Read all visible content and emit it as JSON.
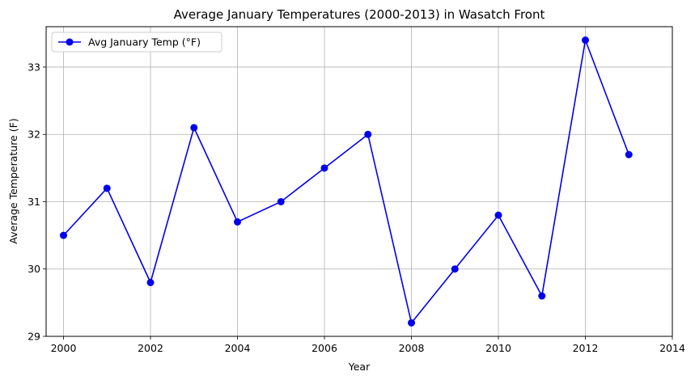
{
  "chart_data": {
    "type": "line",
    "title": "Average January Temperatures (2000-2013) in Wasatch Front",
    "xlabel": "Year",
    "ylabel": "Average Temperature (F)",
    "xlim": [
      1999.6,
      2014
    ],
    "ylim": [
      29,
      33.6
    ],
    "xticks": [
      2000,
      2002,
      2004,
      2006,
      2008,
      2010,
      2012,
      2014
    ],
    "yticks": [
      29,
      30,
      31,
      32,
      33
    ],
    "grid": true,
    "legend": "top-left",
    "series": [
      {
        "name": "Avg January Temp (°F)",
        "color": "#0000ee",
        "marker": "circle",
        "x": [
          2000,
          2001,
          2002,
          2003,
          2004,
          2005,
          2006,
          2007,
          2008,
          2009,
          2010,
          2011,
          2012,
          2013
        ],
        "y": [
          30.5,
          31.2,
          29.8,
          32.1,
          30.7,
          31.0,
          31.5,
          32.0,
          29.2,
          30.0,
          30.8,
          29.6,
          33.4,
          31.7
        ]
      }
    ]
  }
}
